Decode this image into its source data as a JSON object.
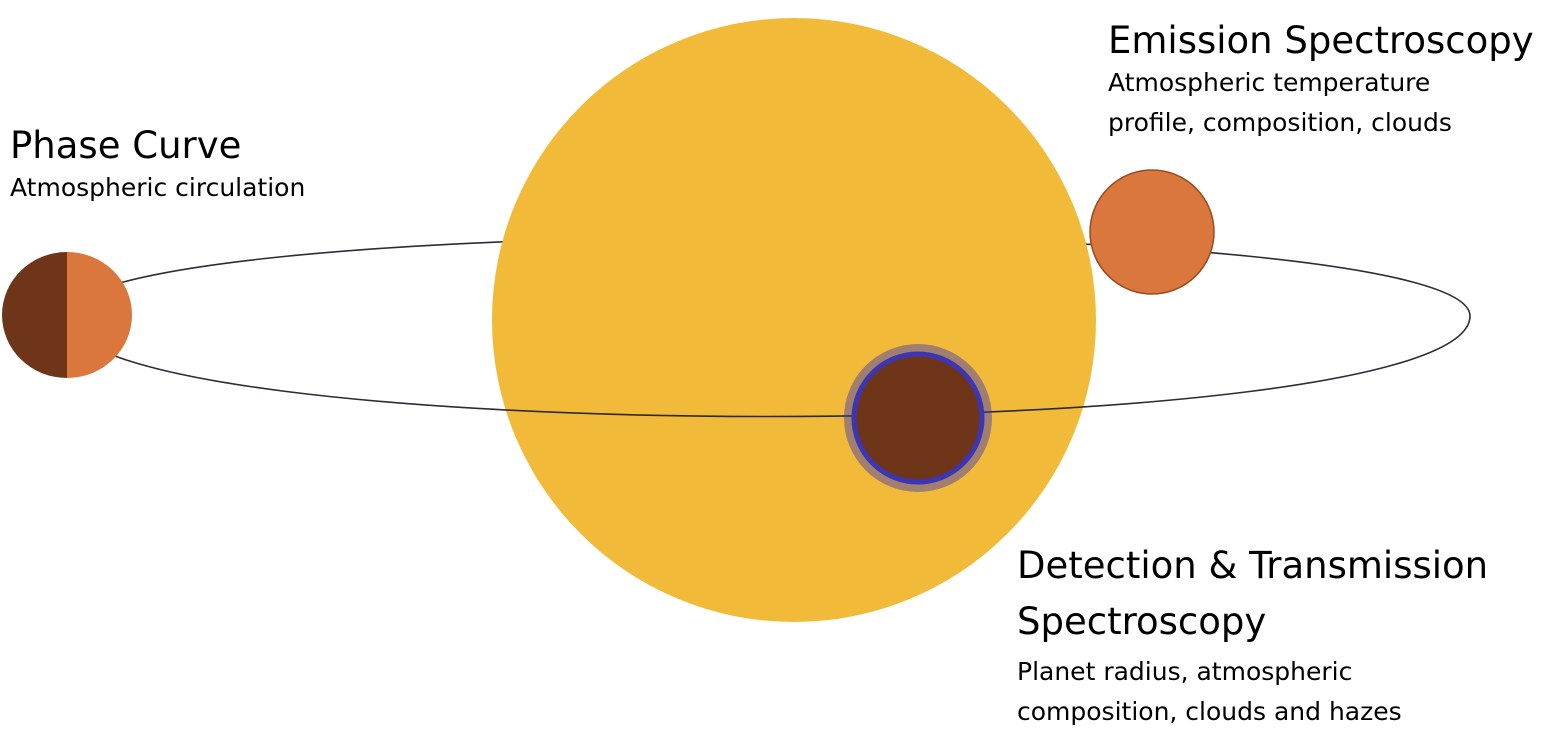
{
  "colors": {
    "star": "#F2BA39",
    "planet_day": "#DA773C",
    "planet_night": "#6F3519",
    "transit_ring": "#3C36B4",
    "orbit": "#2b2b3a"
  },
  "labels": {
    "phase_curve": {
      "title": "Phase Curve",
      "description": "Atmospheric circulation"
    },
    "emission": {
      "title": "Emission Spectroscopy",
      "description_line1": "Atmospheric temperature",
      "description_line2": "profile, composition, clouds"
    },
    "transit": {
      "title_line1": "Detection & Transmission",
      "title_line2": "Spectroscopy",
      "description_line1": "Planet radius, atmospheric",
      "description_line2": "composition, clouds and hazes"
    }
  }
}
